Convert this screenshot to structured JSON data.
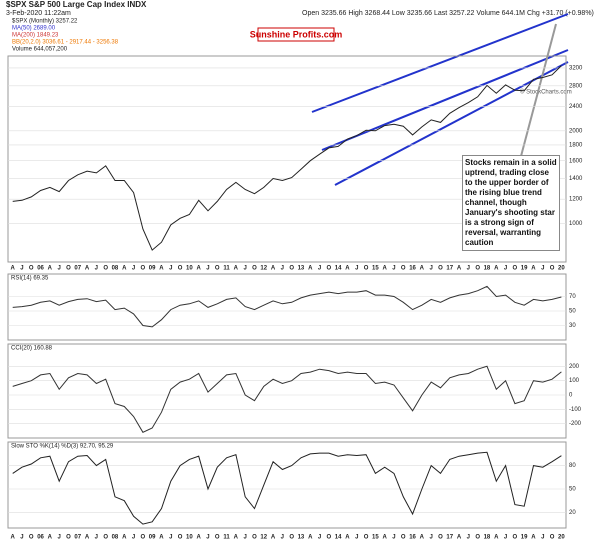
{
  "header": {
    "symbol": "$SPX S&P 500 Large Cap Index INDX",
    "date": "3-Feb-2020 11:22am",
    "quote": "Open 3235.66 High 3268.44 Low 3235.66 Last 3257.22 Volume 644.1M Chg +31.70 (+0.98%)",
    "legend": [
      "$SPX (Monthly) 3257.22",
      "MA(50) 2689.00",
      "MA(200) 1849.23",
      "BB(20,2.0) 3036.61 - 2917.44 - 3256.38",
      "Volume 644,057,200"
    ],
    "brand": "Sunshine Profits.com",
    "credit": "© StockCharts.com",
    "annotation": "Stocks remain in a solid uptrend, trading close to the upper border of the rising blue trend channel, though January's shooting star is a strong sign of reversal, warranting caution"
  },
  "chart_data": [
    {
      "type": "line",
      "title": "$SPX (Monthly) 3257.22",
      "log_scale": true,
      "color": "#222222",
      "categories": [
        "A",
        "J",
        "O",
        "06",
        "A",
        "J",
        "O",
        "07",
        "A",
        "J",
        "O",
        "08",
        "A",
        "J",
        "O",
        "09",
        "A",
        "J",
        "O",
        "10",
        "A",
        "J",
        "O",
        "11",
        "A",
        "J",
        "O",
        "12",
        "A",
        "J",
        "O",
        "13",
        "A",
        "J",
        "O",
        "14",
        "A",
        "J",
        "O",
        "15",
        "A",
        "J",
        "O",
        "16",
        "A",
        "J",
        "O",
        "17",
        "A",
        "J",
        "O",
        "18",
        "A",
        "J",
        "O",
        "19",
        "A",
        "J",
        "O",
        "20"
      ],
      "values": [
        1180,
        1190,
        1220,
        1280,
        1310,
        1270,
        1380,
        1440,
        1480,
        1460,
        1540,
        1380,
        1380,
        1260,
        960,
        820,
        870,
        990,
        1040,
        1070,
        1190,
        1100,
        1180,
        1290,
        1360,
        1290,
        1250,
        1310,
        1400,
        1380,
        1410,
        1500,
        1600,
        1680,
        1760,
        1780,
        1880,
        1930,
        2010,
        2000,
        2080,
        2100,
        2070,
        1940,
        2060,
        2170,
        2130,
        2280,
        2380,
        2470,
        2580,
        2810,
        2650,
        2820,
        2710,
        2700,
        2940,
        2980,
        3040,
        3257.22
      ],
      "ylim": [
        750,
        3500
      ],
      "yticks": [
        1000,
        1200,
        1400,
        1600,
        1800,
        2000,
        2400,
        2800,
        3200
      ],
      "grid": true
    },
    {
      "type": "line",
      "title": "RSI(14) 69.35",
      "color": "#333333",
      "values": [
        55,
        56,
        58,
        62,
        64,
        58,
        63,
        66,
        67,
        63,
        65,
        52,
        54,
        46,
        30,
        28,
        38,
        52,
        58,
        60,
        64,
        55,
        60,
        66,
        68,
        56,
        52,
        58,
        64,
        60,
        62,
        68,
        72,
        74,
        76,
        74,
        76,
        76,
        78,
        72,
        72,
        70,
        62,
        52,
        58,
        66,
        62,
        68,
        72,
        74,
        78,
        84,
        70,
        72,
        62,
        58,
        66,
        64,
        66,
        69.35
      ],
      "ylim": [
        10,
        90
      ],
      "yticks": [
        30,
        50,
        70
      ],
      "grid": true
    },
    {
      "type": "line",
      "title": "CCI(20) 160.88",
      "color": "#333333",
      "values": [
        60,
        80,
        100,
        140,
        150,
        40,
        120,
        150,
        140,
        80,
        110,
        -60,
        -80,
        -150,
        -260,
        -230,
        -120,
        40,
        90,
        110,
        150,
        20,
        80,
        140,
        150,
        0,
        -40,
        60,
        110,
        80,
        100,
        150,
        160,
        180,
        170,
        150,
        160,
        150,
        150,
        80,
        90,
        70,
        -20,
        -110,
        0,
        90,
        50,
        120,
        140,
        150,
        180,
        200,
        40,
        100,
        -60,
        -40,
        100,
        90,
        110,
        160.88
      ],
      "ylim": [
        -300,
        300
      ],
      "yticks": [
        -200,
        -100,
        0,
        100,
        200
      ],
      "grid": true
    },
    {
      "type": "line",
      "title": "Slow STO %K(14) %D(3) 92.70, 95.29",
      "color": "#222222",
      "values": [
        70,
        78,
        82,
        90,
        92,
        60,
        85,
        92,
        93,
        80,
        88,
        40,
        35,
        15,
        5,
        8,
        25,
        60,
        80,
        88,
        92,
        50,
        78,
        90,
        94,
        40,
        25,
        55,
        85,
        75,
        80,
        90,
        95,
        96,
        96,
        92,
        94,
        93,
        94,
        70,
        78,
        70,
        40,
        18,
        50,
        80,
        70,
        88,
        92,
        94,
        96,
        97,
        60,
        80,
        30,
        28,
        80,
        78,
        85,
        92.7
      ],
      "ylim": [
        0,
        100
      ],
      "yticks": [
        20,
        50,
        80
      ],
      "grid": true
    }
  ]
}
